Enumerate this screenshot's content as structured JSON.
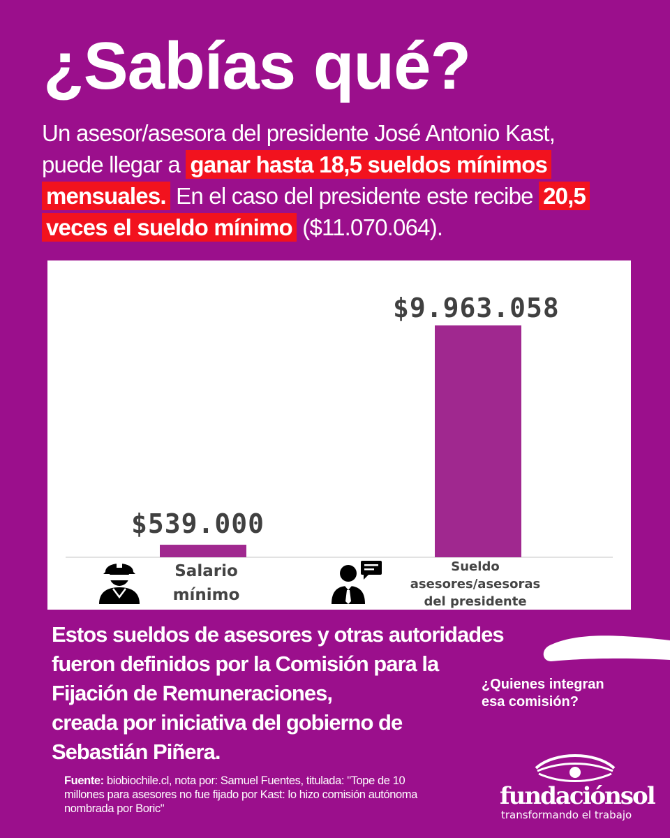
{
  "title": "¿Sabías qué?",
  "intro": {
    "p1": "Un asesor/asesora del presidente José Antonio Kast, puede llegar a ",
    "h1": "ganar hasta 18,5 sueldos mínimos mensuales.",
    "p2": " En el caso del presidente este recibe ",
    "h2": "20,5 veces el sueldo mínimo",
    "p3": " ($11.070.064)."
  },
  "chart_data": {
    "type": "bar",
    "categories": [
      "Salario mínimo",
      "Sueldo asesores/asesoras del presidente"
    ],
    "values": [
      539000,
      9963058
    ],
    "value_labels": [
      "$539.000",
      "$9.963.058"
    ],
    "title": "",
    "xlabel": "",
    "ylabel": "",
    "ylim": [
      0,
      9963058
    ],
    "grid": false,
    "legend": "none",
    "bar_color": "#a0288f"
  },
  "icons": [
    "worker-icon",
    "advisor-icon"
  ],
  "body": {
    "line1": "Estos sueldos de asesores y otras autoridades",
    "line2": "fueron definidos por la Comisión para la",
    "line3": "Fijación de Remuneraciones,",
    "line4": "creada por iniciativa del gobierno de",
    "line5": "Sebastián Piñera."
  },
  "question": "¿Quienes integran esa comisión?",
  "source": {
    "label": "Fuente:",
    "text": " biobiochile.cl, nota por: Samuel Fuentes, titulada: \"Tope de 10 millones para asesores no fue fijado por Kast: lo hizo comisión autónoma nombrada por Boric\""
  },
  "logo": {
    "name": "fundaciónsol",
    "tagline": "transformando el trabajo"
  },
  "colors": {
    "background": "#9b0f8c",
    "highlight": "#f2121e",
    "bar": "#a0288f"
  }
}
